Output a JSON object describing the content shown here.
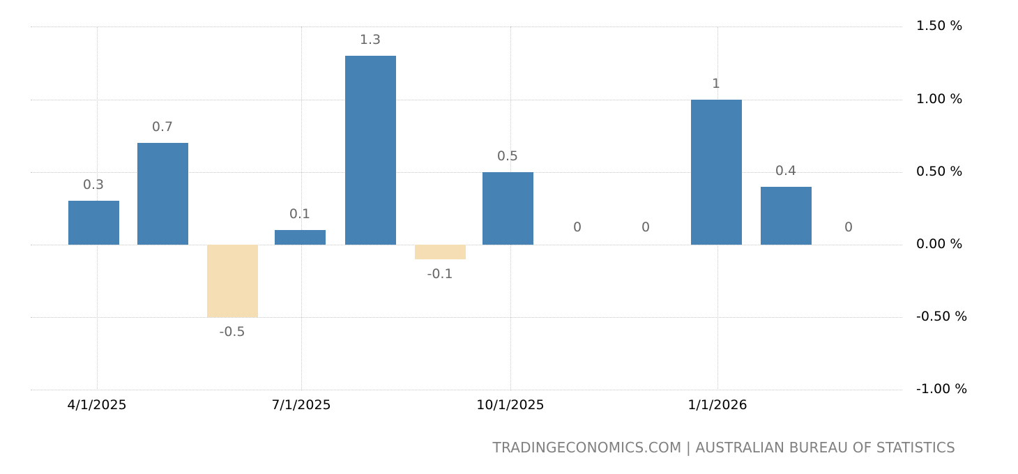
{
  "chart_data": {
    "type": "bar",
    "title": "",
    "xlabel": "",
    "ylabel": "",
    "ylim": [
      -1.0,
      1.5
    ],
    "grid": true,
    "legend": "none",
    "categories": [
      "2025-04",
      "2025-05",
      "2025-06",
      "2025-07",
      "2025-08",
      "2025-09",
      "2025-10",
      "2025-11",
      "2025-12",
      "2026-01",
      "2026-02",
      "2026-03"
    ],
    "values": [
      0.3,
      0.7,
      -0.5,
      0.1,
      1.3,
      -0.1,
      0.5,
      0,
      0,
      1,
      0.4,
      0
    ],
    "data_labels": [
      "0.3",
      "0.7",
      "-0.5",
      "0.1",
      "1.3",
      "-0.1",
      "0.5",
      "0",
      "0",
      "1",
      "0.4",
      "0"
    ],
    "x_tick_labels": [
      "4/1/2025",
      "7/1/2025",
      "10/1/2025",
      "1/1/2026"
    ],
    "y_tick_labels": [
      "1.50 %",
      "1.00 %",
      "0.50 %",
      "0.00 %",
      "-0.50 %",
      "-1.00 %"
    ],
    "y_ticks": [
      1.5,
      1.0,
      0.5,
      0.0,
      -0.5,
      -1.0
    ],
    "colors": {
      "positive": "#4682b4",
      "negative": "#f5deb3",
      "label": "#666666",
      "grid": "#c8c8c8"
    }
  },
  "footer": {
    "source": "TRADINGECONOMICS.COM | AUSTRALIAN BUREAU OF STATISTICS"
  }
}
